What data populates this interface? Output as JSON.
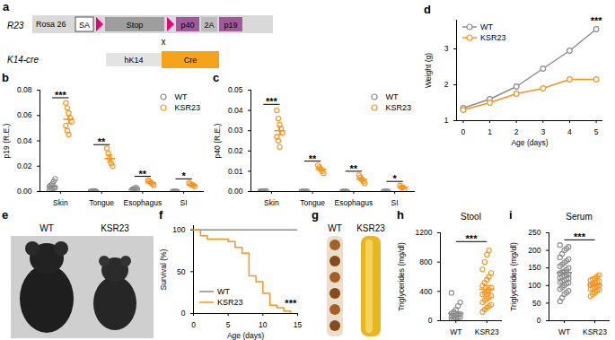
{
  "diagram": {
    "panel": "a",
    "construct": {
      "label": "R23",
      "segments": [
        "Rosa 26",
        "SA",
        "Stop",
        "p40",
        "2A",
        "p19"
      ]
    },
    "cross": "x",
    "transgene": {
      "label": "K14-cre",
      "segments": [
        "hK14",
        "Cre"
      ]
    }
  },
  "photos": [
    {
      "panel": "e",
      "labels": [
        "WT",
        "KSR23"
      ]
    },
    {
      "panel": "g",
      "labels": [
        "WT",
        "KSR23"
      ]
    }
  ],
  "chart_data": [
    {
      "panel": "b",
      "type": "dotplot",
      "y_label": "p19 (R.E.)",
      "categories": [
        "Skin",
        "Tongue",
        "Esophagus",
        "SI"
      ],
      "marker": "open_circle",
      "legend": "top-right",
      "ylim": [
        0,
        0.08
      ],
      "yticks": [
        {
          "value": 0,
          "label": "0.00"
        },
        {
          "value": 0.02,
          "label": "0.02"
        },
        {
          "value": 0.04,
          "label": "0.04"
        },
        {
          "value": 0.06,
          "label": "0.06"
        },
        {
          "value": 0.08,
          "label": "0.08"
        }
      ],
      "series": [
        {
          "name": "WT",
          "color": "#8c8c8c",
          "values": [
            [
              0.001,
              0.002,
              0.002,
              0.003,
              0.003,
              0.004,
              0.005,
              0.006,
              0.008,
              0.01
            ],
            [
              0,
              0,
              0.0005,
              0.0005,
              0
            ],
            [
              0.001,
              0.002,
              0.002,
              0.003,
              0.002
            ],
            [
              0,
              0,
              0,
              0
            ]
          ],
          "means": [
            0.004,
            0.0003,
            0.002,
            0
          ],
          "errors": [
            0.001,
            0.0001,
            0.0003,
            0
          ]
        },
        {
          "name": "KSR23",
          "color": "#f7941d",
          "values": [
            [
              0.07,
              0.066,
              0.062,
              0.058,
              0.055,
              0.052,
              0.048,
              0.045
            ],
            [
              0.034,
              0.03,
              0.026,
              0.022,
              0.02
            ],
            [
              0.009,
              0.008,
              0.007,
              0.006,
              0.005
            ],
            [
              0.007,
              0.006,
              0.005,
              0.005,
              0.004
            ]
          ],
          "means": [
            0.057,
            0.026,
            0.007,
            0.005
          ],
          "errors": [
            0.003,
            0.003,
            0.001,
            0.0006
          ]
        }
      ],
      "annotations": [
        {
          "text": "***",
          "category": "Skin",
          "y": 0.074
        },
        {
          "text": "**",
          "category": "Tongue",
          "y": 0.037
        },
        {
          "text": "**",
          "category": "Esophagus",
          "y": 0.012
        },
        {
          "text": "*",
          "category": "SI",
          "y": 0.01
        }
      ]
    },
    {
      "panel": "c",
      "type": "dotplot",
      "y_label": "p40 (R.E.)",
      "categories": [
        "Skin",
        "Tongue",
        "Esophagus",
        "SI"
      ],
      "marker": "open_circle",
      "legend": "top-right",
      "ylim": [
        0,
        0.05
      ],
      "yticks": [
        {
          "value": 0,
          "label": "0.00"
        },
        {
          "value": 0.01,
          "label": "0.01"
        },
        {
          "value": 0.02,
          "label": "0.02"
        },
        {
          "value": 0.03,
          "label": "0.03"
        },
        {
          "value": 0.04,
          "label": "0.04"
        },
        {
          "value": 0.05,
          "label": "0.05"
        }
      ],
      "series": [
        {
          "name": "WT",
          "color": "#8c8c8c",
          "values": [
            [
              0,
              0,
              0,
              0.0002,
              0.0003,
              0,
              0,
              0.0001
            ],
            [
              0,
              0,
              0,
              0,
              0
            ],
            [
              0,
              0,
              0,
              0
            ],
            [
              0,
              0,
              0,
              0
            ]
          ],
          "means": [
            0.0001,
            0,
            0,
            0
          ],
          "errors": [
            5e-05,
            0,
            0,
            0
          ]
        },
        {
          "name": "KSR23",
          "color": "#f7941d",
          "values": [
            [
              0.04,
              0.036,
              0.033,
              0.031,
              0.029,
              0.027,
              0.025,
              0.022
            ],
            [
              0.013,
              0.012,
              0.011,
              0.01,
              0.009
            ],
            [
              0.008,
              0.007,
              0.006,
              0.005,
              0.004
            ],
            [
              0.003,
              0.002,
              0.002,
              0.001
            ]
          ],
          "means": [
            0.03,
            0.011,
            0.006,
            0.002
          ],
          "errors": [
            0.002,
            0.0007,
            0.0007,
            0.0004
          ]
        }
      ],
      "annotations": [
        {
          "text": "***",
          "category": "Skin",
          "y": 0.043
        },
        {
          "text": "**",
          "category": "Tongue",
          "y": 0.015
        },
        {
          "text": "**",
          "category": "Esophagus",
          "y": 0.01
        },
        {
          "text": "*",
          "category": "SI",
          "y": 0.005
        }
      ]
    },
    {
      "panel": "d",
      "type": "line",
      "x_label": "Age (days)",
      "y_label": "Weight (g)",
      "x": [
        0,
        1,
        2,
        3,
        4,
        5
      ],
      "xlim": [
        -0.25,
        5.25
      ],
      "xticks": [
        0,
        1,
        2,
        3,
        4,
        5
      ],
      "ylim": [
        1,
        3.8
      ],
      "yticks": [
        1,
        2,
        3
      ],
      "marker": "open_circle",
      "legend": "top-left",
      "series": [
        {
          "name": "WT",
          "color": "#8c8c8c",
          "values": [
            1.35,
            1.6,
            1.95,
            2.45,
            2.95,
            3.55
          ]
        },
        {
          "name": "KSR23",
          "color": "#f7941d",
          "values": [
            1.3,
            1.5,
            1.75,
            1.9,
            2.15,
            2.15
          ]
        }
      ],
      "annotations": [
        {
          "text": "***",
          "x": 5,
          "y": 3.68
        }
      ]
    },
    {
      "panel": "f",
      "type": "line",
      "x_label": "Age (days)",
      "y_label": "Survival (%)",
      "xlim": [
        0,
        15
      ],
      "xticks": [
        0,
        5,
        10,
        15
      ],
      "ylim": [
        0,
        105
      ],
      "yticks": [
        0,
        50,
        100
      ],
      "line_style": "step",
      "legend": "bottom-left",
      "series": [
        {
          "name": "WT",
          "color": "#8c8c8c",
          "x": [
            0,
            15
          ],
          "values": [
            100,
            100
          ]
        },
        {
          "name": "KSR23",
          "color": "#f7941d",
          "x": [
            0,
            1,
            2,
            5,
            6,
            7,
            8,
            9,
            10,
            11,
            12,
            13,
            14
          ],
          "values": [
            100,
            93,
            89,
            86,
            79,
            72,
            45,
            38,
            24,
            10,
            7,
            3,
            0
          ]
        }
      ],
      "annotations": [
        {
          "text": "***",
          "x": 14,
          "y": 8
        }
      ]
    },
    {
      "panel": "h",
      "type": "dotplot",
      "title": "Stool",
      "y_label": "Triglycerides (mg/dl)",
      "categories": [
        "WT",
        "KSR23"
      ],
      "colors": [
        "#8c8c8c",
        "#f7941d"
      ],
      "marker": "open_circle",
      "ylim": [
        0,
        1200
      ],
      "yticks": [
        0,
        400,
        800,
        1200
      ],
      "values": [
        [
          20,
          30,
          40,
          45,
          50,
          55,
          60,
          70,
          80,
          90,
          100,
          120,
          150,
          200,
          250,
          380
        ],
        [
          120,
          150,
          180,
          200,
          220,
          250,
          280,
          300,
          320,
          340,
          360,
          380,
          400,
          420,
          450,
          480,
          520,
          560,
          600,
          650,
          700,
          800,
          900,
          960
        ]
      ],
      "means": [
        100,
        430
      ],
      "errors": [
        22,
        48
      ],
      "annotations": [
        {
          "text": "***",
          "y": 1080
        }
      ]
    },
    {
      "panel": "i",
      "type": "dotplot",
      "title": "Serum",
      "y_label": "Triglycerides (mg/dl)",
      "categories": [
        "WT",
        "KSR23"
      ],
      "colors": [
        "#8c8c8c",
        "#f7941d"
      ],
      "marker": "open_circle",
      "ylim": [
        0,
        250
      ],
      "yticks": [
        0,
        50,
        100,
        150,
        200,
        250
      ],
      "values": [
        [
          55,
          65,
          75,
          80,
          85,
          90,
          95,
          100,
          105,
          108,
          110,
          112,
          115,
          118,
          120,
          122,
          125,
          128,
          130,
          132,
          135,
          138,
          140,
          145,
          150,
          155,
          160,
          165,
          170,
          175,
          180,
          190,
          200,
          205,
          210,
          215
        ],
        [
          70,
          75,
          80,
          85,
          88,
          90,
          92,
          95,
          98,
          100,
          102,
          105,
          108,
          110,
          112,
          115,
          118,
          120,
          125,
          130
        ]
      ],
      "means": [
        137,
        102
      ],
      "errors": [
        6,
        4
      ],
      "annotations": [
        {
          "text": "***",
          "y": 230
        }
      ]
    }
  ]
}
